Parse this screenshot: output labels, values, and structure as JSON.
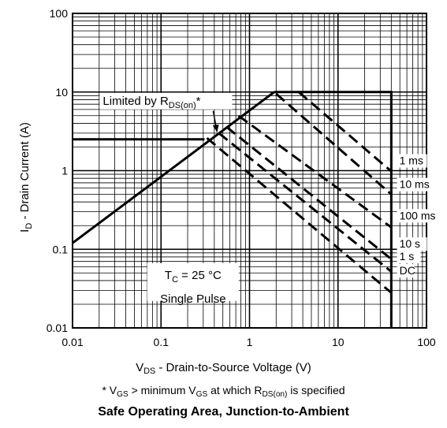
{
  "chart_data": {
    "type": "line",
    "title": "Safe Operating Area, Junction-to-Ambient",
    "xlabel": {
      "main": "V",
      "sub": "DS",
      "rest": " - Drain-to-Source Voltage (V)"
    },
    "ylabel": {
      "main": "I",
      "sub": "D",
      "rest": " - Drain Current (A)"
    },
    "x_scale": "log",
    "y_scale": "log",
    "xlim": [
      0.01,
      100
    ],
    "ylim": [
      0.01,
      100
    ],
    "x_ticks": [
      0.01,
      0.1,
      1,
      10,
      100
    ],
    "x_tick_labels": [
      "0.01",
      "0.1",
      "1",
      "10",
      "100"
    ],
    "y_ticks": [
      0.01,
      0.1,
      1,
      10,
      100
    ],
    "y_tick_labels": [
      "0.01",
      "0.1",
      "1",
      "10",
      "100"
    ],
    "grid": true,
    "limit_line": {
      "name": "R_DS(on) limit",
      "points": [
        [
          0.01,
          0.12
        ],
        [
          1.9,
          10
        ]
      ]
    },
    "series": [
      {
        "name": "1 ms",
        "dashed": true,
        "points": [
          [
            3.6,
            10
          ],
          [
            40,
            0.98
          ]
        ]
      },
      {
        "name": "10 ms",
        "dashed": true,
        "points": [
          [
            2.0,
            9.5
          ],
          [
            40,
            0.5
          ]
        ]
      },
      {
        "name": "100 ms",
        "dashed": true,
        "points": [
          [
            0.75,
            5.0
          ],
          [
            40,
            0.19
          ]
        ]
      },
      {
        "name": "10 s",
        "dashed": true,
        "points": [
          [
            0.55,
            3.6
          ],
          [
            40,
            0.075
          ]
        ]
      },
      {
        "name": "1 s",
        "dashed": true,
        "points": [
          [
            0.45,
            3.0
          ],
          [
            40,
            0.052
          ]
        ]
      },
      {
        "name": "DC",
        "dashed": true,
        "points": [
          [
            0.33,
            2.6
          ],
          [
            40,
            0.028
          ]
        ]
      }
    ],
    "current_limit": {
      "points": [
        [
          1.9,
          10
        ],
        [
          40,
          10
        ],
        [
          40,
          0.01
        ]
      ]
    },
    "dc_level": {
      "points": [
        [
          0.01,
          2.5
        ],
        [
          0.31,
          2.5
        ]
      ]
    },
    "curve_labels": [
      {
        "text": "1 ms",
        "at": [
          57,
          1.2
        ]
      },
      {
        "text": "10 ms",
        "at": [
          57,
          0.6
        ]
      },
      {
        "text": "100 ms",
        "at": [
          57,
          0.24
        ]
      },
      {
        "text": "10 s",
        "at": [
          57,
          0.105
        ]
      },
      {
        "text": "1 s",
        "at": [
          57,
          0.073
        ]
      },
      {
        "text": "DC",
        "at": [
          57,
          0.048
        ]
      }
    ],
    "annotations": {
      "limited": {
        "main": "Limited by R",
        "sub": "DS(on)",
        "rest": "*",
        "anchor": [
          0.022,
          6.9
        ],
        "arrow_to": [
          0.43,
          3.1
        ]
      },
      "tc": {
        "main": "T",
        "sub": "C",
        "rest": " = 25 °C",
        "anchor": [
          0.23,
          0.042
        ]
      },
      "pulse": {
        "text": "Single Pulse",
        "anchor": [
          0.23,
          0.022
        ]
      }
    }
  },
  "footnote": {
    "p1": "* V",
    "s1": "GS",
    "p2": " > minimum V",
    "s2": "GS",
    "p3": " at which R",
    "s3": "DS(on)",
    "p4": " is specified"
  }
}
